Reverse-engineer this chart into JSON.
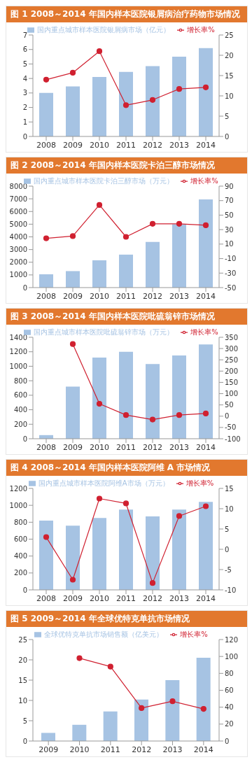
{
  "chart_data": [
    {
      "type": "bar",
      "title": "图 1  2008～2014 年国内样本医院银屑病治疗药物市场情况",
      "categories": [
        "2008",
        "2009",
        "2010",
        "2011",
        "2012",
        "2013",
        "2014"
      ],
      "series": [
        {
          "name": "国内重点城市样本医院银屑病市场（亿元）",
          "color": "#a6c3e3",
          "values": [
            3.0,
            3.45,
            4.1,
            4.45,
            4.85,
            5.5,
            6.1
          ]
        },
        {
          "type": "line",
          "axis": "y2",
          "name": "增长率%",
          "color": "#d02030",
          "values": [
            14,
            15.7,
            21,
            7.7,
            9,
            11.7,
            12.1
          ]
        }
      ],
      "ylim": [
        0,
        7
      ],
      "yticks": [
        0,
        1,
        2,
        3,
        4,
        5,
        6,
        7
      ],
      "y2lim": [
        0,
        25
      ],
      "y2ticks": [
        0,
        5,
        10,
        15,
        20,
        25
      ],
      "legend": "top",
      "marker": "circle",
      "grid": false
    },
    {
      "type": "bar",
      "title": "图 2  2008～2014 年国内样本医院卡泊三醇市场情况",
      "categories": [
        "2008",
        "2009",
        "2010",
        "2011",
        "2012",
        "2013",
        "2014"
      ],
      "series": [
        {
          "name": "国内重点城市样本医院卡泊三醇市场（万元）",
          "color": "#a6c3e3",
          "values": [
            1050,
            1300,
            2150,
            2600,
            3600,
            5000,
            6950
          ]
        },
        {
          "type": "line",
          "axis": "y2",
          "name": "增长率%",
          "color": "#d02030",
          "values": [
            18,
            21,
            64,
            20,
            38,
            38,
            36
          ]
        }
      ],
      "ylim": [
        0,
        8000
      ],
      "yticks": [
        0,
        1000,
        2000,
        3000,
        4000,
        5000,
        6000,
        7000,
        8000
      ],
      "y2lim": [
        -50,
        90
      ],
      "y2ticks": [
        -50,
        -30,
        -10,
        10,
        30,
        50,
        70,
        90
      ],
      "legend": "top",
      "marker": "circle",
      "grid": false
    },
    {
      "type": "bar",
      "title": "图 3  2008～2014 年国内样本医院吡硫翁锌市场情况",
      "categories": [
        "2008",
        "2009",
        "2010",
        "2011",
        "2012",
        "2013",
        "2014"
      ],
      "series": [
        {
          "name": "国内重点城市样本医院吡硫翁锌市场（万元）",
          "color": "#a6c3e3",
          "values": [
            50,
            720,
            1120,
            1200,
            1030,
            1150,
            1300
          ]
        },
        {
          "type": "line",
          "axis": "y2",
          "name": "增长率%",
          "color": "#d02030",
          "values": [
            null,
            320,
            55,
            5,
            -15,
            5,
            12
          ]
        }
      ],
      "ylim": [
        0,
        1400
      ],
      "yticks": [
        0,
        200,
        400,
        600,
        800,
        1000,
        1200,
        1400
      ],
      "y2lim": [
        -100,
        350
      ],
      "y2ticks": [
        -100,
        -50,
        0,
        50,
        100,
        150,
        200,
        250,
        300,
        350
      ],
      "legend": "top",
      "marker": "circle",
      "grid": false
    },
    {
      "type": "bar",
      "title": "图 4  2008～2014 年国内样本医院阿维 A 市场情况",
      "categories": [
        "2008",
        "2009",
        "2010",
        "2011",
        "2012",
        "2013",
        "2014"
      ],
      "series": [
        {
          "name": "国内重点城市样本医院阿维A市场（万元）",
          "color": "#a6c3e3",
          "values": [
            820,
            760,
            850,
            950,
            870,
            950,
            1040
          ]
        },
        {
          "type": "line",
          "axis": "y2",
          "name": "增长率%",
          "color": "#d02030",
          "values": [
            3,
            -7.5,
            12.5,
            11.3,
            -8.3,
            8.2,
            10.6
          ]
        }
      ],
      "ylim": [
        0,
        1200
      ],
      "yticks": [
        0,
        200,
        400,
        600,
        800,
        1000,
        1200
      ],
      "y2lim": [
        -10,
        15
      ],
      "y2ticks": [
        -10,
        -5,
        0,
        5,
        10,
        15
      ],
      "legend": "top",
      "marker": "circle",
      "grid": false
    },
    {
      "type": "bar",
      "title": "图 5  2009～2014 年全球优特克单抗市场情况",
      "categories": [
        "2009",
        "2010",
        "2011",
        "2012",
        "2013",
        "2014"
      ],
      "series": [
        {
          "name": "全球优特克单抗市场销售额（亿美元）",
          "color": "#a6c3e3",
          "values": [
            2,
            4,
            7.3,
            10.2,
            15,
            20.5
          ]
        },
        {
          "type": "line",
          "axis": "y2",
          "name": "增长率%",
          "color": "#d02030",
          "values": [
            null,
            98,
            88,
            39,
            47,
            38
          ]
        }
      ],
      "ylim": [
        0,
        25
      ],
      "yticks": [
        0,
        5,
        10,
        15,
        20,
        25
      ],
      "y2lim": [
        0,
        120
      ],
      "y2ticks": [
        0,
        20,
        40,
        60,
        80,
        100,
        120
      ],
      "legend": "top",
      "marker": "circle",
      "grid": false
    }
  ]
}
